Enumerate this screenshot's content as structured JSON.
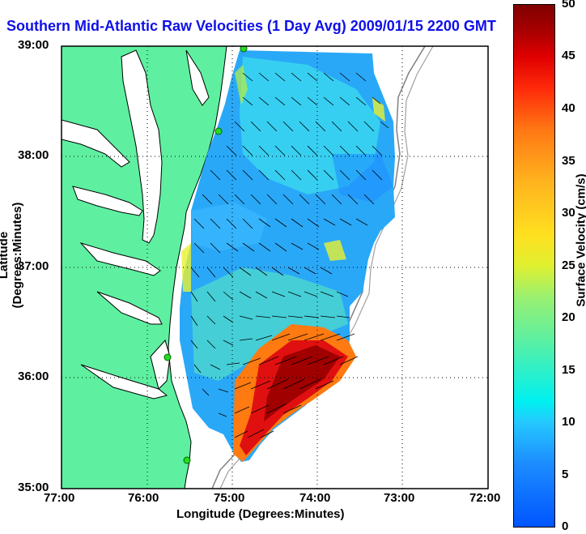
{
  "title": "Southern Mid-Atlantic Raw Velocities (1 Day Avg) 2009/01/15 2200 GMT",
  "map": {
    "x_ticks": [
      "77:00",
      "76:00",
      "75:00",
      "74:00",
      "73:00",
      "72:00"
    ],
    "y_ticks": [
      "39:00",
      "38:00",
      "37:00",
      "36:00",
      "35:00"
    ],
    "xlabel": "Longitude (Degrees:Minutes)",
    "ylabel": "Latitude (Degrees:Minutes)",
    "grid": "dotted",
    "colors": {
      "land": "#5ef0a0",
      "water": "#ffffff",
      "coast": "#000000",
      "isobath": "#808080",
      "stations": "#22dd22"
    }
  },
  "colorbar": {
    "label": "Surface Velocity (cm/s)",
    "ticks": [
      "50",
      "45",
      "40",
      "35",
      "30",
      "25",
      "20",
      "15",
      "10",
      "5",
      "0"
    ],
    "range": [
      0,
      50
    ]
  }
}
